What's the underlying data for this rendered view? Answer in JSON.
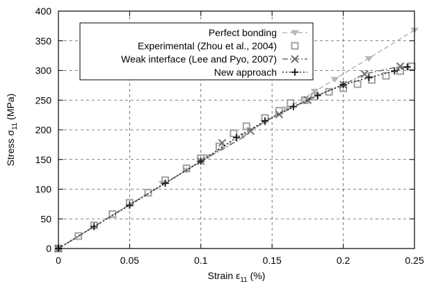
{
  "chart_data": {
    "type": "line",
    "title": "",
    "xlabel": {
      "base": "Strain ε",
      "sub": "11",
      "suffix": " (%)"
    },
    "ylabel": {
      "base": "Stress σ",
      "sub": "11",
      "suffix": " (MPa)"
    },
    "xlim": [
      0,
      0.25
    ],
    "ylim": [
      0,
      400
    ],
    "grid": true,
    "legend_position": "top-center",
    "x_ticks": [
      0,
      0.05,
      0.1,
      0.15,
      0.2,
      0.25
    ],
    "x_tick_labels": [
      "0",
      "0.05",
      "0.1",
      "0.15",
      "0.2",
      "0.25"
    ],
    "y_ticks": [
      0,
      50,
      100,
      150,
      200,
      250,
      300,
      350,
      400
    ],
    "y_tick_labels": [
      "0",
      "50",
      "100",
      "150",
      "200",
      "250",
      "300",
      "350",
      "400"
    ],
    "series": [
      {
        "name": "Perfect bonding",
        "style": "dashed-line-with-triangles",
        "color": "#b8b8b8",
        "x": [
          0,
          0.025,
          0.05,
          0.075,
          0.1,
          0.125,
          0.15,
          0.175,
          0.2,
          0.225,
          0.25
        ],
        "y": [
          0,
          37,
          74,
          110,
          147,
          184,
          221,
          257,
          294,
          331,
          368
        ],
        "markers_x": [
          0,
          0.073,
          0.09,
          0.105,
          0.13,
          0.145,
          0.16,
          0.18,
          0.194,
          0.218,
          0.25
        ],
        "markers_y": [
          0,
          110,
          132,
          155,
          190,
          212,
          235,
          265,
          285,
          320,
          368
        ]
      },
      {
        "name": "Experimental (Zhou et al., 2004)",
        "style": "markers-squares",
        "color": "#a0a0a0",
        "x": [
          0,
          0.014,
          0.025,
          0.038,
          0.05,
          0.063,
          0.075,
          0.09,
          0.1,
          0.113,
          0.123,
          0.132,
          0.145,
          0.155,
          0.163,
          0.173,
          0.18,
          0.19,
          0.2,
          0.21,
          0.22,
          0.23,
          0.24,
          0.248
        ],
        "y": [
          0,
          21,
          39,
          58,
          77,
          94,
          115,
          135,
          152,
          172,
          194,
          206,
          220,
          232,
          245,
          250,
          256,
          264,
          270,
          277,
          284,
          291,
          299,
          307
        ]
      },
      {
        "name": "Weak interface (Lee and Pyo, 2007)",
        "style": "dash-dot-line-with-x",
        "color": "#707070",
        "x": [
          0,
          0.025,
          0.05,
          0.075,
          0.1,
          0.115,
          0.128,
          0.135,
          0.145,
          0.155,
          0.163,
          0.175,
          0.185,
          0.2,
          0.215,
          0.24,
          0.245
        ],
        "y": [
          0,
          37,
          74,
          110,
          147,
          167,
          185,
          198,
          214,
          226,
          236,
          250,
          261,
          276,
          294,
          307,
          305
        ],
        "markers_x": [
          0,
          0.1,
          0.115,
          0.135,
          0.155,
          0.175,
          0.2,
          0.215,
          0.24
        ],
        "markers_y": [
          0,
          147,
          178,
          198,
          226,
          250,
          276,
          294,
          307
        ]
      },
      {
        "name": "New approach",
        "style": "dotted-line-with-plus",
        "color": "#222222",
        "x": [
          0,
          0.025,
          0.05,
          0.075,
          0.1,
          0.125,
          0.145,
          0.165,
          0.182,
          0.2,
          0.218,
          0.236,
          0.245
        ],
        "y": [
          0,
          37,
          73,
          110,
          147,
          187,
          215,
          239,
          258,
          276,
          288,
          299,
          306
        ]
      }
    ]
  }
}
